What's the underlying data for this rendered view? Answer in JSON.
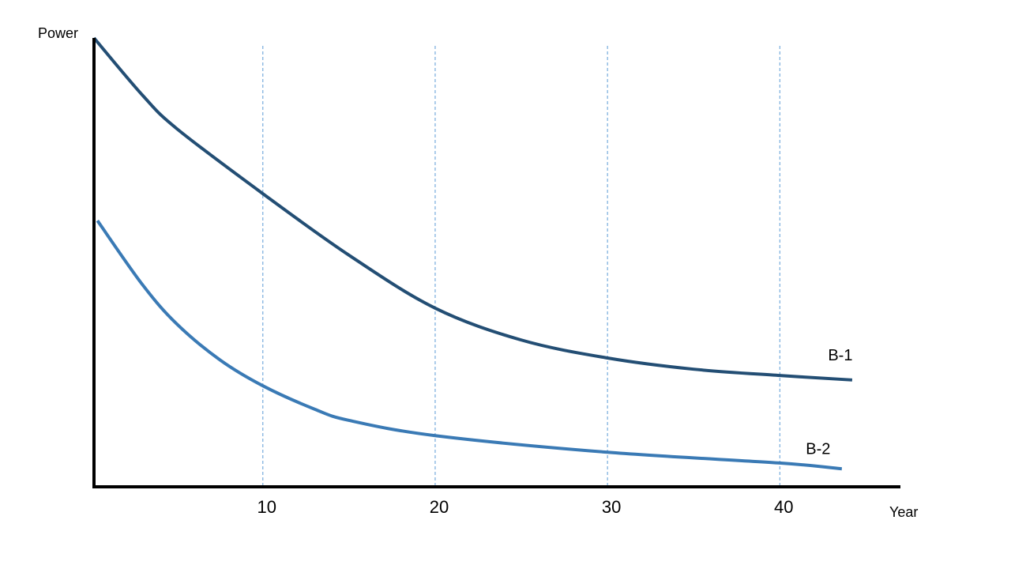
{
  "chart_data": {
    "type": "line",
    "y_label": "Power",
    "x_label": "Year",
    "xlim": [
      0.2,
      47
    ],
    "xticks": [
      10,
      20,
      30,
      40
    ],
    "ylim": [
      0,
      100
    ],
    "grid": true,
    "series": [
      {
        "name": "B-1",
        "color": "#234e74",
        "x": [
          0.2,
          3,
          5,
          10,
          15,
          20,
          25,
          30,
          35,
          40,
          44.2
        ],
        "values": [
          100,
          87.3,
          79.8,
          65.3,
          51.6,
          39.8,
          32.7,
          28.7,
          26.2,
          24.8,
          23.8
        ]
      },
      {
        "name": "B-2",
        "color": "#3a7ab5",
        "x": [
          0.4,
          3,
          5,
          7.5,
          10,
          13,
          15,
          20,
          30,
          40,
          43.6
        ],
        "values": [
          59.3,
          45.1,
          36.3,
          28.3,
          22.5,
          17.3,
          14.8,
          11.4,
          7.7,
          5.3,
          4.0
        ]
      }
    ]
  }
}
